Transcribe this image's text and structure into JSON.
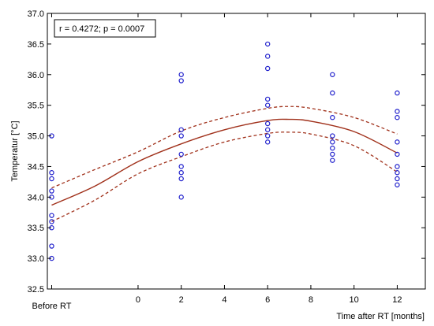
{
  "chart_data": {
    "type": "scatter",
    "title": "",
    "xlabel": "Time after RT [months]",
    "ylabel": "Temperatur [°C]",
    "annotation": "r = 0.4272; p = 0.0007",
    "xlim": [
      -4.2,
      13.3
    ],
    "ylim": [
      32.5,
      37.0
    ],
    "x_ticks": [
      {
        "value": -4,
        "label": "Before RT"
      },
      {
        "value": 0,
        "label": "0"
      },
      {
        "value": 2,
        "label": "2"
      },
      {
        "value": 4,
        "label": "4"
      },
      {
        "value": 6,
        "label": "6"
      },
      {
        "value": 8,
        "label": "8"
      },
      {
        "value": 10,
        "label": "10"
      },
      {
        "value": 12,
        "label": "12"
      }
    ],
    "y_ticks": [
      32.5,
      33.0,
      33.5,
      34.0,
      34.5,
      35.0,
      35.5,
      36.0,
      36.5,
      37.0
    ],
    "y_tick_labels": [
      "32.5",
      "33.0",
      "33.5",
      "34.0",
      "34.5",
      "35.0",
      "35.5",
      "36.0",
      "36.5",
      "37.0"
    ],
    "grid": false,
    "colors": {
      "points": "#1f1fcc",
      "fit": "#a0301a",
      "ci": "#a0301a"
    },
    "series": [
      {
        "points": [
          {
            "x": -4,
            "y": 35.0
          },
          {
            "x": -4,
            "y": 34.4
          },
          {
            "x": -4,
            "y": 34.3
          },
          {
            "x": -4,
            "y": 34.1
          },
          {
            "x": -4,
            "y": 34.0
          },
          {
            "x": -4,
            "y": 33.7
          },
          {
            "x": -4,
            "y": 33.6
          },
          {
            "x": -4,
            "y": 33.5
          },
          {
            "x": -4,
            "y": 33.2
          },
          {
            "x": -4,
            "y": 33.0
          },
          {
            "x": 2,
            "y": 36.0
          },
          {
            "x": 2,
            "y": 35.9
          },
          {
            "x": 2,
            "y": 35.1
          },
          {
            "x": 2,
            "y": 35.0
          },
          {
            "x": 2,
            "y": 34.7
          },
          {
            "x": 2,
            "y": 34.5
          },
          {
            "x": 2,
            "y": 34.4
          },
          {
            "x": 2,
            "y": 34.3
          },
          {
            "x": 2,
            "y": 34.0
          },
          {
            "x": 6,
            "y": 36.5
          },
          {
            "x": 6,
            "y": 36.3
          },
          {
            "x": 6,
            "y": 36.1
          },
          {
            "x": 6,
            "y": 35.6
          },
          {
            "x": 6,
            "y": 35.5
          },
          {
            "x": 6,
            "y": 35.2
          },
          {
            "x": 6,
            "y": 35.1
          },
          {
            "x": 6,
            "y": 35.0
          },
          {
            "x": 6,
            "y": 34.9
          },
          {
            "x": 9,
            "y": 36.0
          },
          {
            "x": 9,
            "y": 35.7
          },
          {
            "x": 9,
            "y": 35.3
          },
          {
            "x": 9,
            "y": 35.0
          },
          {
            "x": 9,
            "y": 34.9
          },
          {
            "x": 9,
            "y": 34.8
          },
          {
            "x": 9,
            "y": 34.7
          },
          {
            "x": 9,
            "y": 34.6
          },
          {
            "x": 12,
            "y": 35.7
          },
          {
            "x": 12,
            "y": 35.4
          },
          {
            "x": 12,
            "y": 35.3
          },
          {
            "x": 12,
            "y": 34.9
          },
          {
            "x": 12,
            "y": 34.7
          },
          {
            "x": 12,
            "y": 34.5
          },
          {
            "x": 12,
            "y": 34.4
          },
          {
            "x": 12,
            "y": 34.3
          },
          {
            "x": 12,
            "y": 34.2
          }
        ]
      }
    ],
    "fit_curve": {
      "x": [
        -4,
        -2,
        0,
        2,
        4,
        6,
        7,
        8,
        10,
        12
      ],
      "y": [
        33.87,
        34.18,
        34.58,
        34.87,
        35.1,
        35.25,
        35.27,
        35.24,
        35.07,
        34.72
      ]
    },
    "ci_upper": {
      "x": [
        -4,
        -2,
        0,
        2,
        4,
        6,
        7,
        8,
        10,
        12
      ],
      "y": [
        34.15,
        34.45,
        34.74,
        35.08,
        35.3,
        35.45,
        35.48,
        35.45,
        35.3,
        35.03
      ]
    },
    "ci_lower": {
      "x": [
        -4,
        -2,
        0,
        2,
        4,
        6,
        7,
        8,
        10,
        12
      ],
      "y": [
        33.6,
        33.95,
        34.38,
        34.66,
        34.9,
        35.04,
        35.06,
        35.03,
        34.84,
        34.41
      ]
    }
  }
}
